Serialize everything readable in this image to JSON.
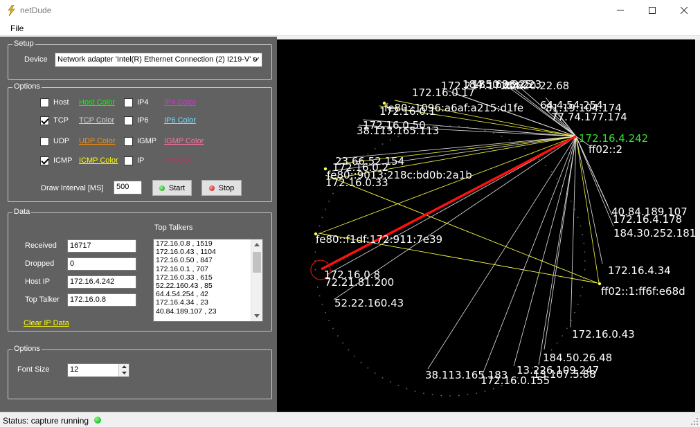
{
  "window": {
    "title": "netDude",
    "minimize_icon": "minimize-icon",
    "maximize_icon": "maximize-icon",
    "close_icon": "close-icon"
  },
  "menu": {
    "file": "File"
  },
  "setup": {
    "legend": "Setup",
    "device_label": "Device",
    "device_value": "Network adapter 'Intel(R) Ethernet Connection (2) I219-V' o"
  },
  "options": {
    "legend": "Options",
    "filters": [
      {
        "label": "Host",
        "checked": false,
        "color_label": "Host Color",
        "color": "#00ff00"
      },
      {
        "label": "TCP",
        "checked": true,
        "color_label": "TCP Color",
        "color": "#d0d0d0"
      },
      {
        "label": "UDP",
        "checked": false,
        "color_label": "UDP Color",
        "color": "#ff8c00"
      },
      {
        "label": "ICMP",
        "checked": true,
        "color_label": "ICMP Color",
        "color": "#ffff00"
      },
      {
        "label": "IP4",
        "checked": false,
        "color_label": "IP4 Color",
        "color": "#d03ad0"
      },
      {
        "label": "IP6",
        "checked": false,
        "color_label": "IP6 Color",
        "color": "#6fe0ff"
      },
      {
        "label": "IGMP",
        "checked": false,
        "color_label": "IGMP Color",
        "color": "#ff6fa8"
      },
      {
        "label": "IP",
        "checked": false,
        "color_label": "IP Color",
        "color": "#d02a6a"
      }
    ],
    "draw_interval_label": "Draw Interval [MS]",
    "draw_interval_value": "500",
    "start_label": "Start",
    "stop_label": "Stop"
  },
  "data": {
    "legend": "Data",
    "received_label": "Received",
    "received_value": "16717",
    "dropped_label": "Dropped",
    "dropped_value": "0",
    "host_ip_label": "Host IP",
    "host_ip_value": "172.16.4.242",
    "top_talker_label": "Top Talker",
    "top_talker_value": "172.16.0.8",
    "clear_label": "Clear IP Data",
    "top_talkers_heading": "Top Talkers",
    "top_talkers": [
      "172.16.0.8 , 1519",
      "172.16.0.43 , 1104",
      "172.16.0.50 , 847",
      "172.16.0.1 , 707",
      "172.16.0.33 , 615",
      "52.22.160.43 , 85",
      "64.4.54.254 , 42",
      "172.16.4.34 , 23",
      "40.84.189.107 , 23"
    ]
  },
  "options2": {
    "legend": "Options",
    "font_size_label": "Font Size",
    "font_size_value": "12"
  },
  "status": {
    "text": "Status: capture running"
  },
  "graph": {
    "host": "172.16.4.242",
    "labels": [
      "184.50.26.25",
      "172.16.0.17",
      "172.217.17.228",
      "104.20.22.68",
      "185.63.9.223",
      "64.4.54.254",
      "81.19.104.174",
      "77.74.177.174",
      "fe80::1096:a6af:a215:d1fe",
      "172.16.0.1",
      "172.16.0.50",
      "38.113.165.113",
      "ff02::2",
      "23.66.52.154",
      "172.16.0.2",
      "fe80::9013:218c:bd0b:2a1b",
      "172.16.0.33",
      "40.84.189.107",
      "172.16.4.178",
      "184.30.252.181",
      "fe80::f1df:172:911:7e39",
      "172.16.4.34",
      "172.16.0.8",
      "72.21.81.200",
      "ff02::1:ff6f:e68d",
      "52.22.160.43",
      "172.16.0.43",
      "184.50.26.48",
      "38.113.165.183",
      "13.226.109.247",
      "172.16.0.155",
      "13.107.5.88"
    ]
  }
}
